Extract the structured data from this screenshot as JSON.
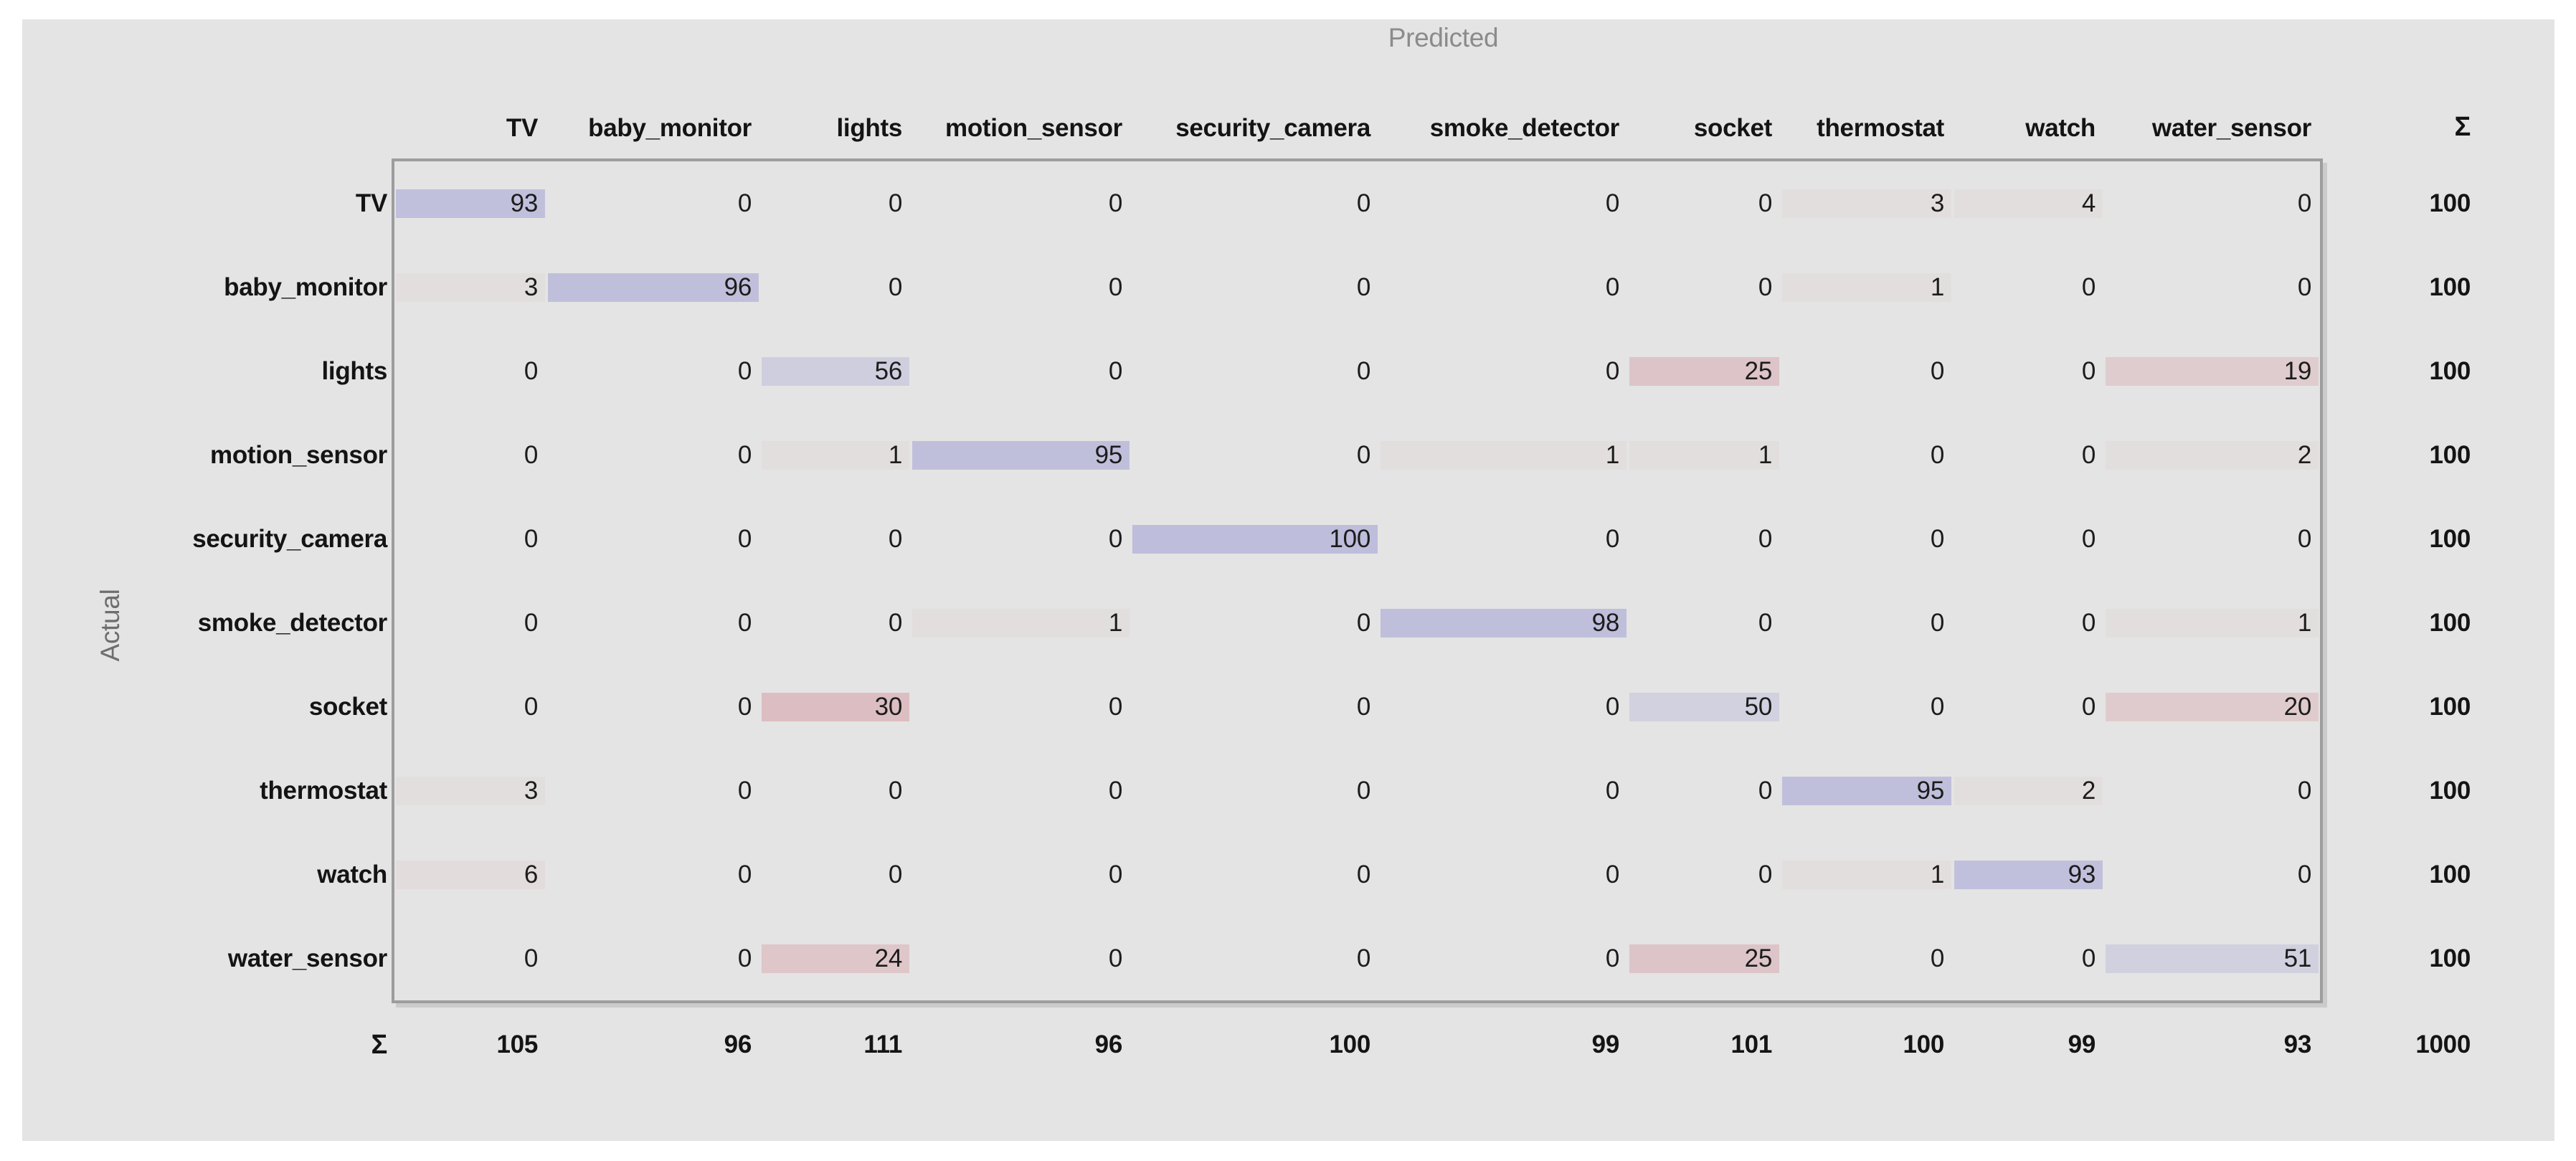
{
  "axis_labels": {
    "predicted": "Predicted",
    "actual": "Actual"
  },
  "sum_symbol": "Σ",
  "chart_data": {
    "type": "heatmap",
    "subtype": "confusion-matrix",
    "x_axis_title": "Predicted",
    "y_axis_title": "Actual",
    "classes": [
      "TV",
      "baby_monitor",
      "lights",
      "motion_sensor",
      "security_camera",
      "smoke_detector",
      "socket",
      "thermostat",
      "watch",
      "water_sensor"
    ],
    "matrix": [
      [
        93,
        0,
        0,
        0,
        0,
        0,
        0,
        3,
        4,
        0
      ],
      [
        3,
        96,
        0,
        0,
        0,
        0,
        0,
        1,
        0,
        0
      ],
      [
        0,
        0,
        56,
        0,
        0,
        0,
        25,
        0,
        0,
        19
      ],
      [
        0,
        0,
        1,
        95,
        0,
        1,
        1,
        0,
        0,
        2
      ],
      [
        0,
        0,
        0,
        0,
        100,
        0,
        0,
        0,
        0,
        0
      ],
      [
        0,
        0,
        0,
        1,
        0,
        98,
        0,
        0,
        0,
        1
      ],
      [
        0,
        0,
        30,
        0,
        0,
        0,
        50,
        0,
        0,
        20
      ],
      [
        3,
        0,
        0,
        0,
        0,
        0,
        0,
        95,
        2,
        0
      ],
      [
        6,
        0,
        0,
        0,
        0,
        0,
        0,
        1,
        93,
        0
      ],
      [
        0,
        0,
        24,
        0,
        0,
        0,
        25,
        0,
        0,
        51
      ]
    ],
    "row_sums": [
      100,
      100,
      100,
      100,
      100,
      100,
      100,
      100,
      100,
      100
    ],
    "col_sums": [
      105,
      96,
      111,
      96,
      100,
      99,
      101,
      100,
      99,
      93
    ],
    "total": 1000,
    "value_range": [
      0,
      100
    ],
    "colors": {
      "panel_bg": "#e4e4e4",
      "zero_cell": "#e4e4e4",
      "diagonal_max": "#bebddb",
      "error_max": "#c96573",
      "matrix_border": "#9d9d9d",
      "header_text": "#141414",
      "value_text": "#1c1c1c",
      "axis_text": "#8b8b8b"
    }
  }
}
